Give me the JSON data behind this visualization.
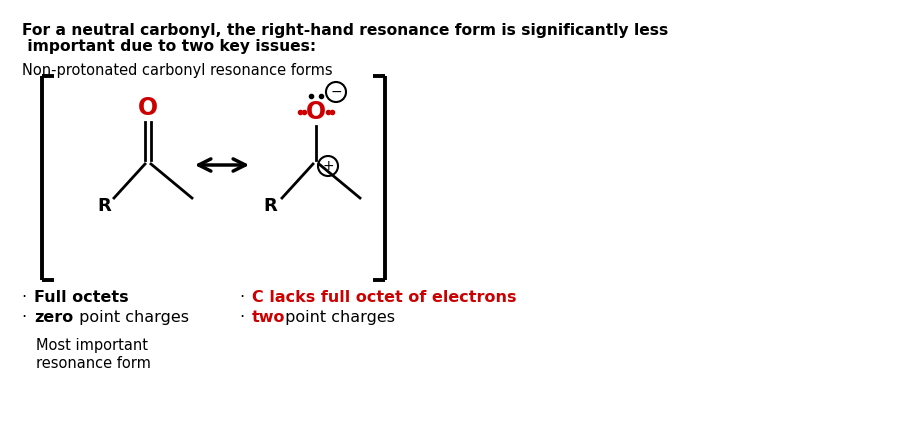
{
  "bg_color": "#ffffff",
  "title_line1": "For a neutral carbonyl, the right-hand resonance form is significantly less",
  "title_line2": " important due to two key issues:",
  "subtitle": "Non-protonated carbonyl resonance forms",
  "red_color": "#cc0000",
  "black_color": "#000000"
}
